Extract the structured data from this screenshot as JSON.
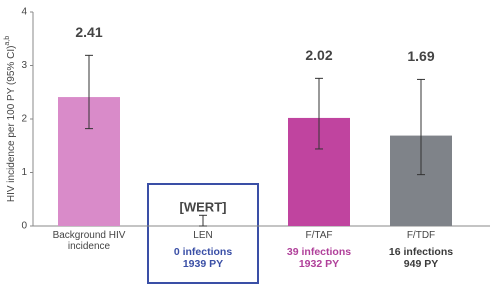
{
  "chart_data": {
    "type": "bar",
    "y_label": "HIV incidence per 100 PY (95% CI)",
    "y_label_superscript": "a,b",
    "categories": [
      "Background HIV incidence",
      "LEN",
      "F/TAF",
      "F/TDF"
    ],
    "values": [
      2.41,
      null,
      2.02,
      1.69
    ],
    "ci_low": [
      1.82,
      0,
      1.44,
      0.96
    ],
    "ci_high": [
      3.19,
      0.2,
      2.76,
      2.74
    ],
    "colors": [
      "#d98bc9",
      "#3a4fa6",
      "#c0449f",
      "#7f8389"
    ],
    "annotations": [
      null,
      "[WERT]",
      null,
      null
    ],
    "infections": [
      null,
      "0 infections",
      "39 infections",
      "16 infections"
    ],
    "person_years": [
      null,
      "1939 PY",
      "1932 PY",
      "949 PY"
    ],
    "label_colors": [
      "#444444",
      "#3a4fa6",
      "#b0409a",
      "#3a3a3a"
    ],
    "ylim": [
      0,
      4
    ],
    "yticks": [
      0,
      1,
      2,
      3,
      4
    ],
    "grid": false
  }
}
